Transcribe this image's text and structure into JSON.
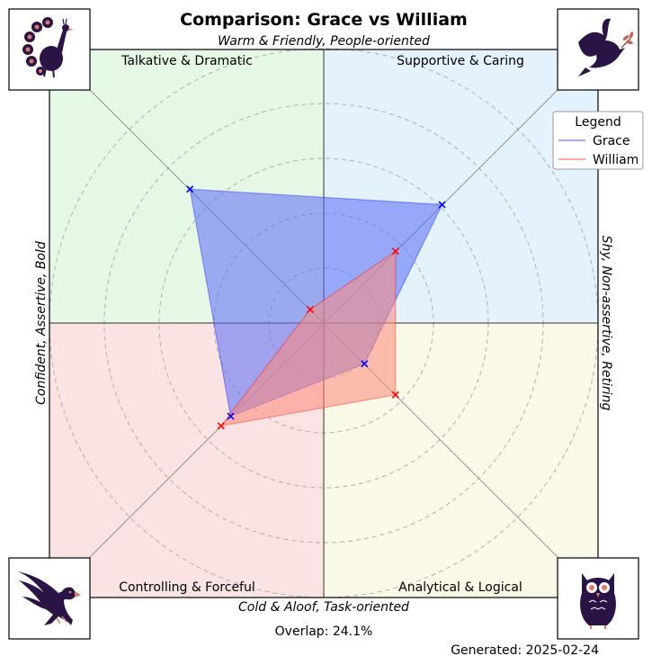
{
  "chart_data": {
    "type": "radar-quadrant",
    "title": "Comparison: Grace vs William",
    "axes": {
      "top": "Warm & Friendly, People-oriented",
      "bottom": "Cold & Aloof, Task-oriented",
      "left": "Confident, Assertive, Bold",
      "right": "Shy, Non-assertive, Retiring"
    },
    "quadrants": [
      {
        "label": "Talkative & Dramatic",
        "direction": "top-left",
        "color": "#e5f8e5"
      },
      {
        "label": "Supportive & Caring",
        "direction": "top-right",
        "color": "#e3f2fd"
      },
      {
        "label": "Controlling & Forceful",
        "direction": "bottom-left",
        "color": "#f9e3e3"
      },
      {
        "label": "Analytical & Logical",
        "direction": "bottom-right",
        "color": "#faf8e7"
      }
    ],
    "radial_max": 10,
    "grid_rings": [
      2,
      4,
      6,
      8,
      10
    ],
    "grid": true,
    "legend": {
      "title": "Legend",
      "position": "top-right"
    },
    "series": [
      {
        "name": "Grace",
        "color": "#0000ff",
        "fill": "#5b6cf5",
        "values": {
          "supportive": 6.1,
          "analytical": 2.1,
          "controlling": 4.8,
          "talkative": 6.9
        }
      },
      {
        "name": "William",
        "color": "#ff0000",
        "fill": "#ff8a7a",
        "values": {
          "supportive": 3.7,
          "analytical": 3.7,
          "controlling": 5.3,
          "talkative": 0.7
        }
      }
    ],
    "overlap_text": "Overlap: 24.1%",
    "generated_text": "Generated: 2025-02-24"
  },
  "icons": {
    "top_left": "peacock-icon",
    "top_right": "dove-icon",
    "bottom_left": "eagle-icon",
    "bottom_right": "owl-icon"
  }
}
